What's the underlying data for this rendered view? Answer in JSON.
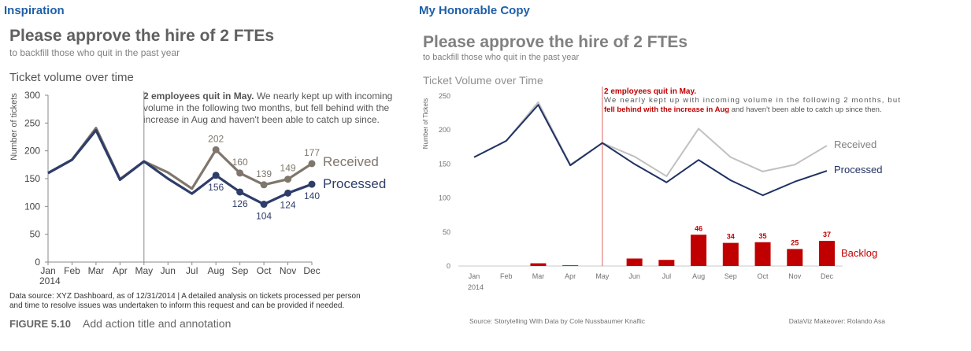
{
  "headers": {
    "left": "Inspiration",
    "right": "My Honorable Copy"
  },
  "left_panel": {
    "title": "Please approve the hire of 2 FTEs",
    "subtitle": "to backfill those who quit in the past year",
    "chart_title": "Ticket volume over time",
    "ylabel": "Number of tickets",
    "annotation": {
      "bold": "2 employees quit in May.",
      "line1_rest": " We nearly kept up with incoming",
      "line2": "volume in the following two months, but fell behind with the",
      "line3": "increase in Aug and haven't been able to catch up since."
    },
    "footnote_line1": "Data source: XYZ Dashboard, as of 12/31/2014  |  A detailed analysis on tickets processed per person",
    "footnote_line2": "and time to resolve issues was undertaken to inform this request and can be provided if needed.",
    "figure_label": "FIGURE 5.10",
    "figure_caption": "Add action title and annotation",
    "colors": {
      "received": "#7f766c",
      "processed": "#2e3d69",
      "text": "#555555"
    }
  },
  "right_panel": {
    "title": "Please approve the hire of 2 FTEs",
    "subtitle": "to backfill those who quit in the past year",
    "chart_title": "Ticket Volume over Time",
    "ylabel": "Number of Tickets",
    "annotation": {
      "bold": "2 employees quit in May.",
      "line2": "We nearly kept up with incoming volume in the following 2 months, but",
      "line3_red": "fell behind with the increase in Aug",
      "line3_rest": " and haven't been able to catch up since then."
    },
    "source": "Source: Storytelling With Data by Cole Nussbaumer Knaflic",
    "credit": "DataViz Makeover: Rolando Asa",
    "colors": {
      "received": "#c0c0c0",
      "processed": "#1f3263",
      "backlog": "#c00000",
      "marker": "#e06060"
    }
  },
  "chart_data": [
    {
      "type": "line",
      "title": "Ticket volume over time",
      "xlabel": "",
      "ylabel": "Number of tickets",
      "categories": [
        "Jan",
        "Feb",
        "Mar",
        "Apr",
        "May",
        "Jun",
        "Jul",
        "Aug",
        "Sep",
        "Oct",
        "Nov",
        "Dec"
      ],
      "year_label": "2014",
      "ylim": [
        0,
        300
      ],
      "yticks": [
        0,
        50,
        100,
        150,
        200,
        250,
        300
      ],
      "series": [
        {
          "name": "Received",
          "values": [
            160,
            184,
            241,
            149,
            181,
            161,
            132,
            202,
            160,
            139,
            149,
            177
          ]
        },
        {
          "name": "Processed",
          "values": [
            160,
            184,
            237,
            148,
            181,
            150,
            123,
            156,
            126,
            104,
            124,
            140
          ]
        }
      ],
      "point_labels": {
        "Received": {
          "Aug": "202",
          "Sep": "160",
          "Oct": "139",
          "Nov": "149",
          "Dec": "177"
        },
        "Processed": {
          "Aug": "156",
          "Sep": "126",
          "Oct": "104",
          "Nov": "124",
          "Dec": "140"
        }
      },
      "marker_month": "May",
      "grid": false
    },
    {
      "type": "line",
      "title": "Ticket Volume over Time",
      "xlabel": "",
      "ylabel": "Number of Tickets",
      "categories": [
        "Jan",
        "Feb",
        "Mar",
        "Apr",
        "May",
        "Jun",
        "Jul",
        "Aug",
        "Sep",
        "Oct",
        "Nov",
        "Dec"
      ],
      "year_label": "2014",
      "ylim": [
        0,
        250
      ],
      "yticks": [
        0,
        50,
        100,
        150,
        200,
        250
      ],
      "series": [
        {
          "name": "Received",
          "values": [
            160,
            184,
            241,
            149,
            181,
            161,
            132,
            202,
            160,
            139,
            149,
            177
          ]
        },
        {
          "name": "Processed",
          "values": [
            160,
            184,
            237,
            148,
            181,
            150,
            123,
            156,
            126,
            104,
            124,
            140
          ]
        },
        {
          "name": "Backlog",
          "type": "bar",
          "values": [
            0,
            0,
            4,
            1,
            0,
            11,
            9,
            46,
            34,
            35,
            25,
            37
          ]
        }
      ],
      "bar_labels": {
        "Aug": "46",
        "Sep": "34",
        "Oct": "35",
        "Nov": "25",
        "Dec": "37"
      },
      "marker_month": "May",
      "grid": false
    }
  ]
}
